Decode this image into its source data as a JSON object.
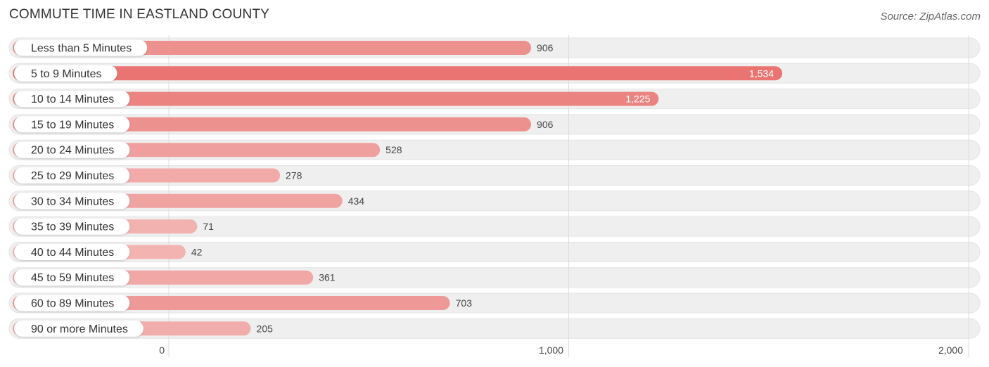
{
  "header": {
    "title": "COMMUTE TIME IN EASTLAND COUNTY",
    "source": "Source: ZipAtlas.com"
  },
  "colors": {
    "bar_max": "#e97471",
    "bar_min": "#f2b5b3",
    "track": "#efefef",
    "grid": "#dddddd",
    "value_inside": "#ffffff",
    "value_outside": "#444444"
  },
  "chart_data": {
    "type": "bar",
    "orientation": "horizontal",
    "title": "COMMUTE TIME IN EASTLAND COUNTY",
    "categories": [
      "Less than 5 Minutes",
      "5 to 9 Minutes",
      "10 to 14 Minutes",
      "15 to 19 Minutes",
      "20 to 24 Minutes",
      "25 to 29 Minutes",
      "30 to 34 Minutes",
      "35 to 39 Minutes",
      "40 to 44 Minutes",
      "45 to 59 Minutes",
      "60 to 89 Minutes",
      "90 or more Minutes"
    ],
    "values": [
      906,
      1534,
      1225,
      906,
      528,
      278,
      434,
      71,
      42,
      361,
      703,
      205
    ],
    "value_labels": [
      "906",
      "1,534",
      "1,225",
      "906",
      "528",
      "278",
      "434",
      "71",
      "42",
      "361",
      "703",
      "205"
    ],
    "xlim": [
      0,
      2000
    ],
    "xticks": [
      0,
      1000,
      2000
    ],
    "xtick_labels": [
      "0",
      "1,000",
      "2,000"
    ],
    "grid": true,
    "legend": "none"
  }
}
